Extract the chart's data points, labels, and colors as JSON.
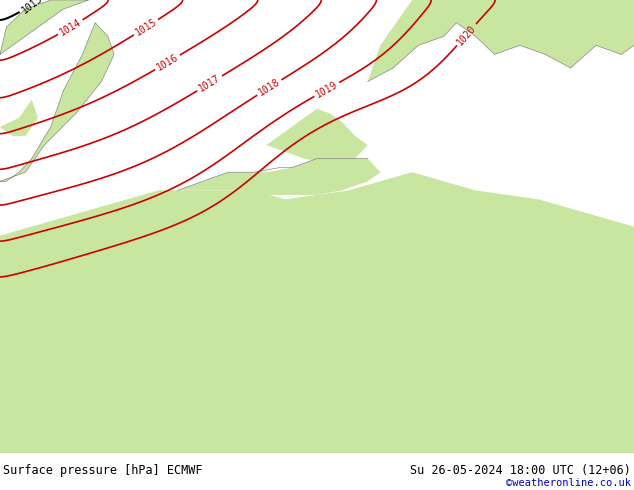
{
  "title_left": "Surface pressure [hPa] ECMWF",
  "title_right": "Su 26-05-2024 18:00 UTC (12+06)",
  "credit": "©weatheronline.co.uk",
  "land_color": "#c8e6a0",
  "sea_color": "#d2d2d2",
  "contour_colors": {
    "low": "#0000cc",
    "mid": "#000000",
    "high": "#cc0000"
  },
  "label_fontsize": 7,
  "fig_width": 6.34,
  "fig_height": 4.9,
  "bottom_bar_height": 0.075
}
